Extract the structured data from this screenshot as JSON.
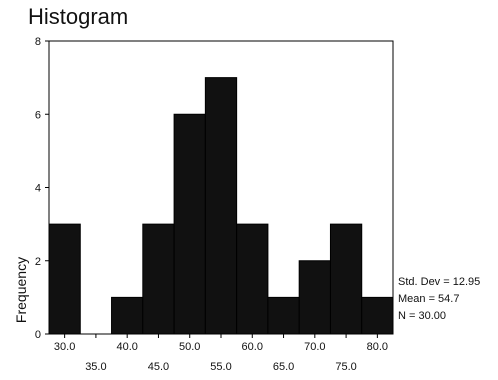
{
  "chart_data": {
    "type": "bar",
    "title": "Histogram",
    "xlabel": "",
    "ylabel": "Frequency",
    "categories": [
      "30.0",
      "35.0",
      "40.0",
      "45.0",
      "50.0",
      "55.0",
      "60.0",
      "65.0",
      "70.0",
      "75.0",
      "80.0"
    ],
    "values": [
      3,
      0,
      1,
      3,
      6,
      7,
      3,
      1,
      2,
      3,
      1
    ],
    "ylim": [
      0,
      8
    ],
    "yticks": [
      0,
      2,
      4,
      6,
      8
    ],
    "grid": false,
    "bar_color": "#111111",
    "stats": {
      "std_dev": "Std. Dev = 12.95",
      "mean": "Mean = 54.7",
      "n": "N = 30.00"
    }
  }
}
